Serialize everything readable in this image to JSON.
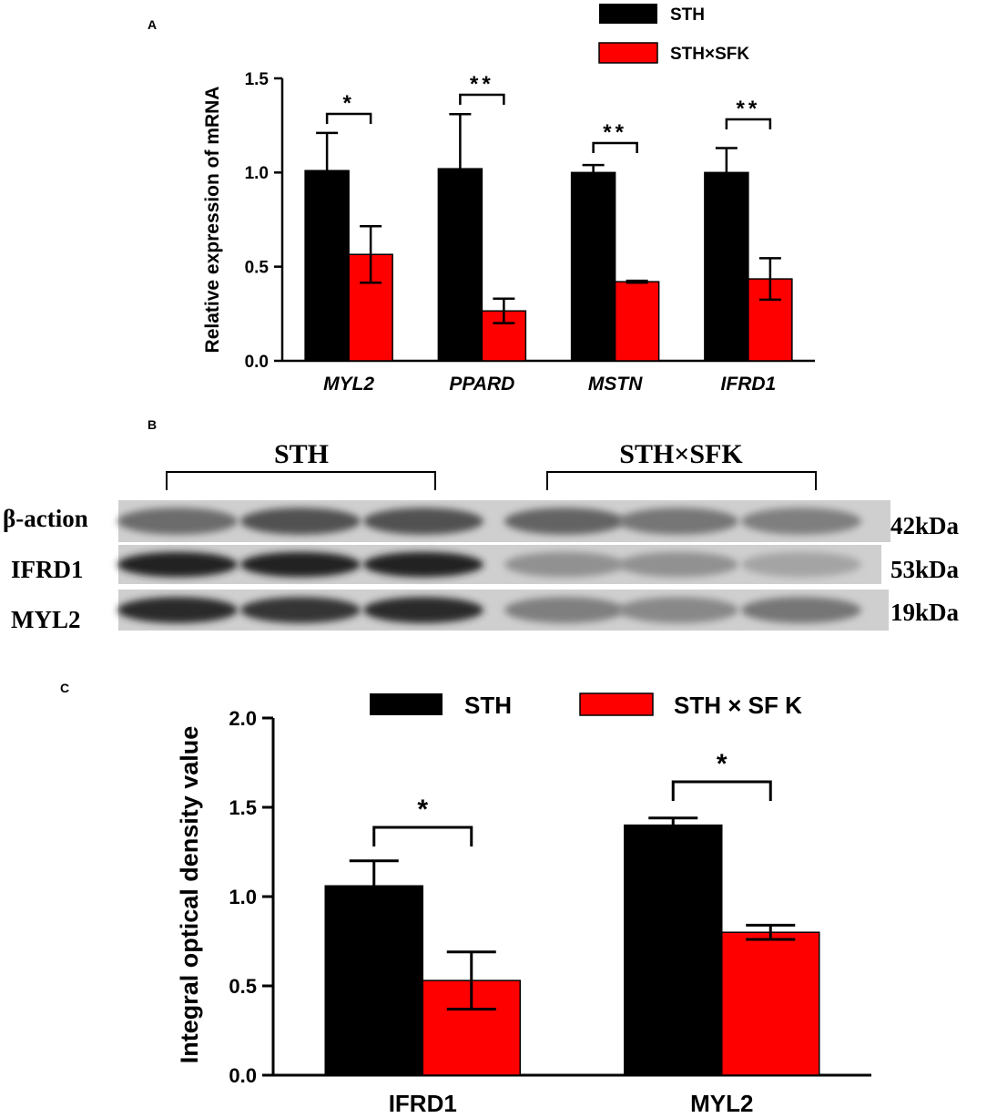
{
  "panels": {
    "a": {
      "label": "A"
    },
    "b": {
      "label": "B"
    },
    "c": {
      "label": "C"
    }
  },
  "colors": {
    "sth": "#000000",
    "cross": "#ff0000",
    "axis": "#000000",
    "blot_bg": "#cfcfcf"
  },
  "chart_data": [
    {
      "type": "bar",
      "panel": "A",
      "ylabel": "Relative expression of mRNA",
      "categories": [
        "MYL2",
        "PPARD",
        "MSTN",
        "IFRD1"
      ],
      "ylim": [
        0,
        1.5
      ],
      "yticks": [
        "0.0",
        "0.5",
        "1.0",
        "1.5"
      ],
      "legend": "top-right",
      "series": [
        {
          "name": "STH",
          "color": "#000000",
          "values": [
            1.01,
            1.02,
            1.0,
            1.0
          ],
          "errors": [
            0.2,
            0.29,
            0.04,
            0.13
          ]
        },
        {
          "name": "STH×SFK",
          "color": "#ff0000",
          "values": [
            0.565,
            0.265,
            0.42,
            0.435
          ],
          "errors": [
            0.15,
            0.065,
            0.005,
            0.11
          ]
        }
      ],
      "significance": [
        "*",
        "**",
        "**",
        "**"
      ]
    },
    {
      "type": "bar",
      "panel": "C",
      "ylabel": "Integral optical density value",
      "categories": [
        "IFRD1",
        "MYL2"
      ],
      "ylim": [
        0,
        2.0
      ],
      "yticks": [
        "0.0",
        "0.5",
        "1.0",
        "1.5",
        "2.0"
      ],
      "legend": "top",
      "series": [
        {
          "name": "STH",
          "color": "#000000",
          "values": [
            1.06,
            1.4
          ],
          "errors": [
            0.14,
            0.04
          ]
        },
        {
          "name": "STH × SF K",
          "color": "#ff0000",
          "values": [
            0.53,
            0.8
          ],
          "errors": [
            0.16,
            0.04
          ]
        }
      ],
      "significance": [
        "*",
        "*"
      ]
    }
  ],
  "blot": {
    "group_labels": [
      "STH",
      "STH×SFK"
    ],
    "rows": [
      {
        "protein": "β-action",
        "size": "42kDa",
        "intensities": [
          0.55,
          0.7,
          0.7,
          0.6,
          0.5,
          0.45
        ]
      },
      {
        "protein": "IFRD1",
        "size": "53kDa",
        "intensities": [
          0.95,
          0.95,
          0.95,
          0.35,
          0.35,
          0.25
        ]
      },
      {
        "protein": "MYL2",
        "size": "19kDa",
        "intensities": [
          0.9,
          0.85,
          0.9,
          0.45,
          0.4,
          0.5
        ]
      }
    ]
  }
}
